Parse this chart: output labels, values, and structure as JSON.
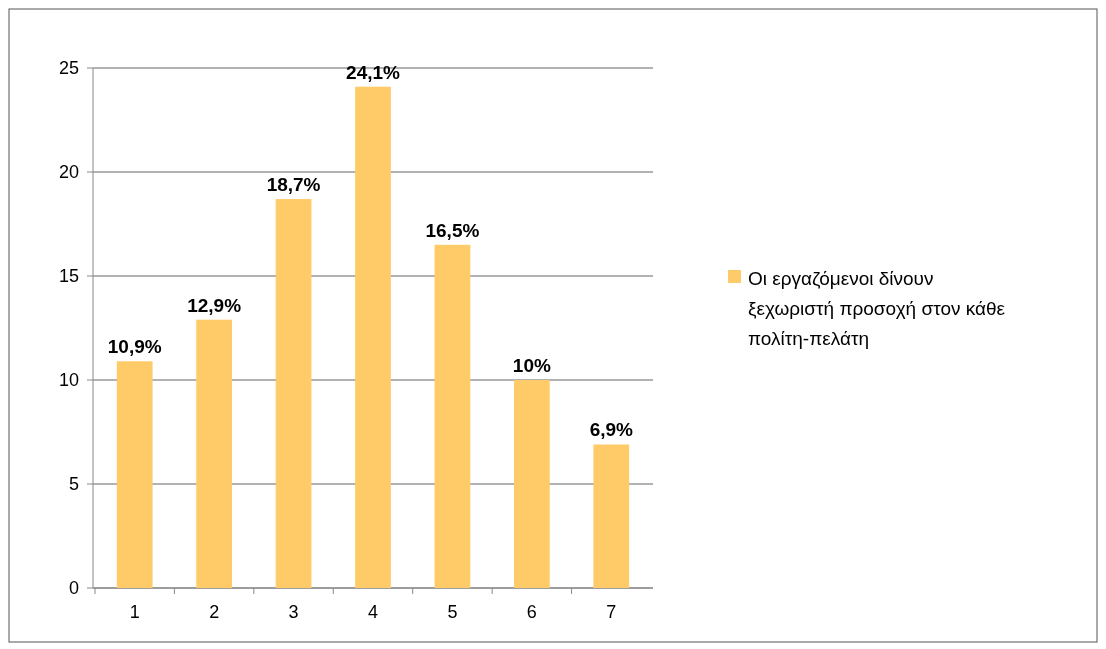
{
  "chart_data": {
    "type": "bar",
    "categories": [
      "1",
      "2",
      "3",
      "4",
      "5",
      "6",
      "7"
    ],
    "series": [
      {
        "name": "Οι εργαζόμενοι δίνουν ξεχωριστή προσοχή στον κάθε πολίτη-πελάτη",
        "color": "#ffcb69",
        "values": [
          10.9,
          12.9,
          18.7,
          24.1,
          16.5,
          10,
          6.9
        ],
        "value_labels": [
          "10,9%",
          "12,9%",
          "18,7%",
          "24,1%",
          "16,5%",
          "10%",
          "6,9%"
        ]
      }
    ],
    "ylim": [
      0,
      25
    ],
    "yticks": [
      0,
      5,
      10,
      15,
      20,
      25
    ],
    "grid": "y",
    "legend": "right"
  }
}
